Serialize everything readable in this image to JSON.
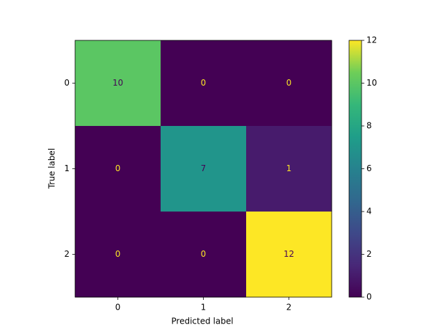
{
  "chart_data": {
    "type": "heatmap",
    "x_label": "Predicted label",
    "y_label": "True label",
    "x_categories": [
      "0",
      "1",
      "2"
    ],
    "y_categories": [
      "0",
      "1",
      "2"
    ],
    "values": [
      [
        10,
        0,
        0
      ],
      [
        0,
        7,
        1
      ],
      [
        0,
        0,
        12
      ]
    ],
    "colormap": "viridis",
    "colorbar": {
      "lim": [
        0,
        12
      ],
      "ticks": [
        0,
        2,
        4,
        6,
        8,
        10,
        12
      ]
    }
  }
}
